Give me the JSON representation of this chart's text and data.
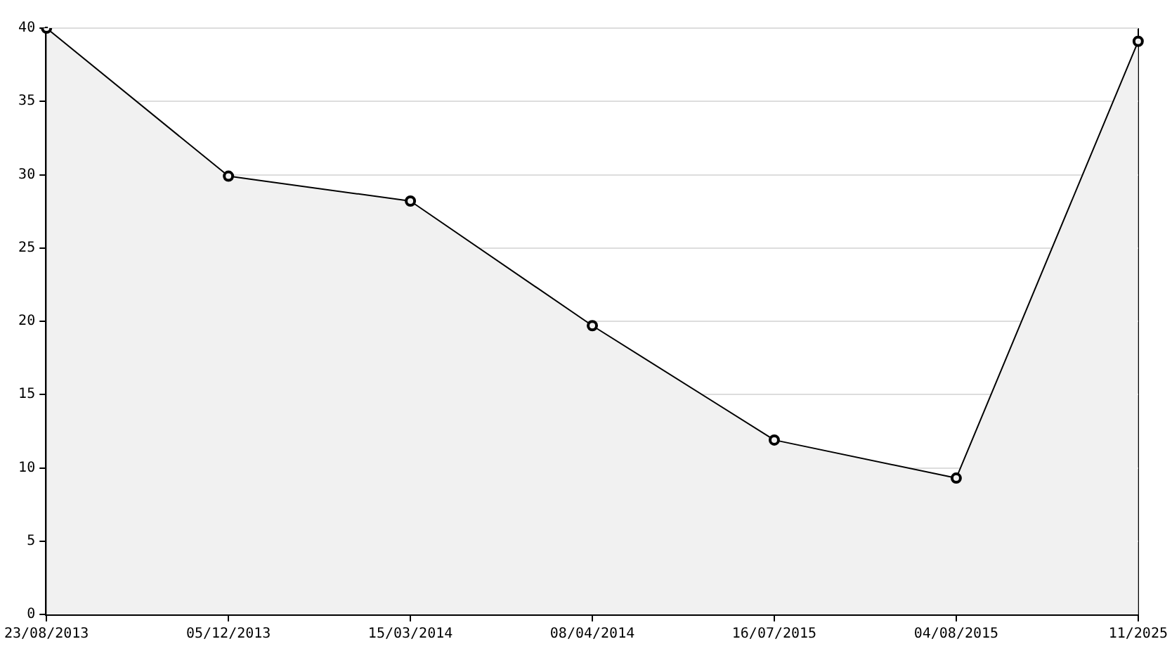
{
  "chart_data": {
    "type": "area",
    "categories": [
      "23/08/2013",
      "05/12/2013",
      "15/03/2014",
      "08/04/2014",
      "16/07/2015",
      "04/08/2015",
      "11/2025"
    ],
    "series": [
      {
        "color": "#000000",
        "values": [
          40,
          29.9,
          28.2,
          19.7,
          11.9,
          9.3,
          39.1
        ]
      }
    ],
    "ylim": [
      0,
      40
    ],
    "yticks": [
      0,
      5,
      10,
      15,
      20,
      25,
      30,
      35,
      40
    ],
    "grid": "y",
    "marker": "circle",
    "legend": false
  }
}
